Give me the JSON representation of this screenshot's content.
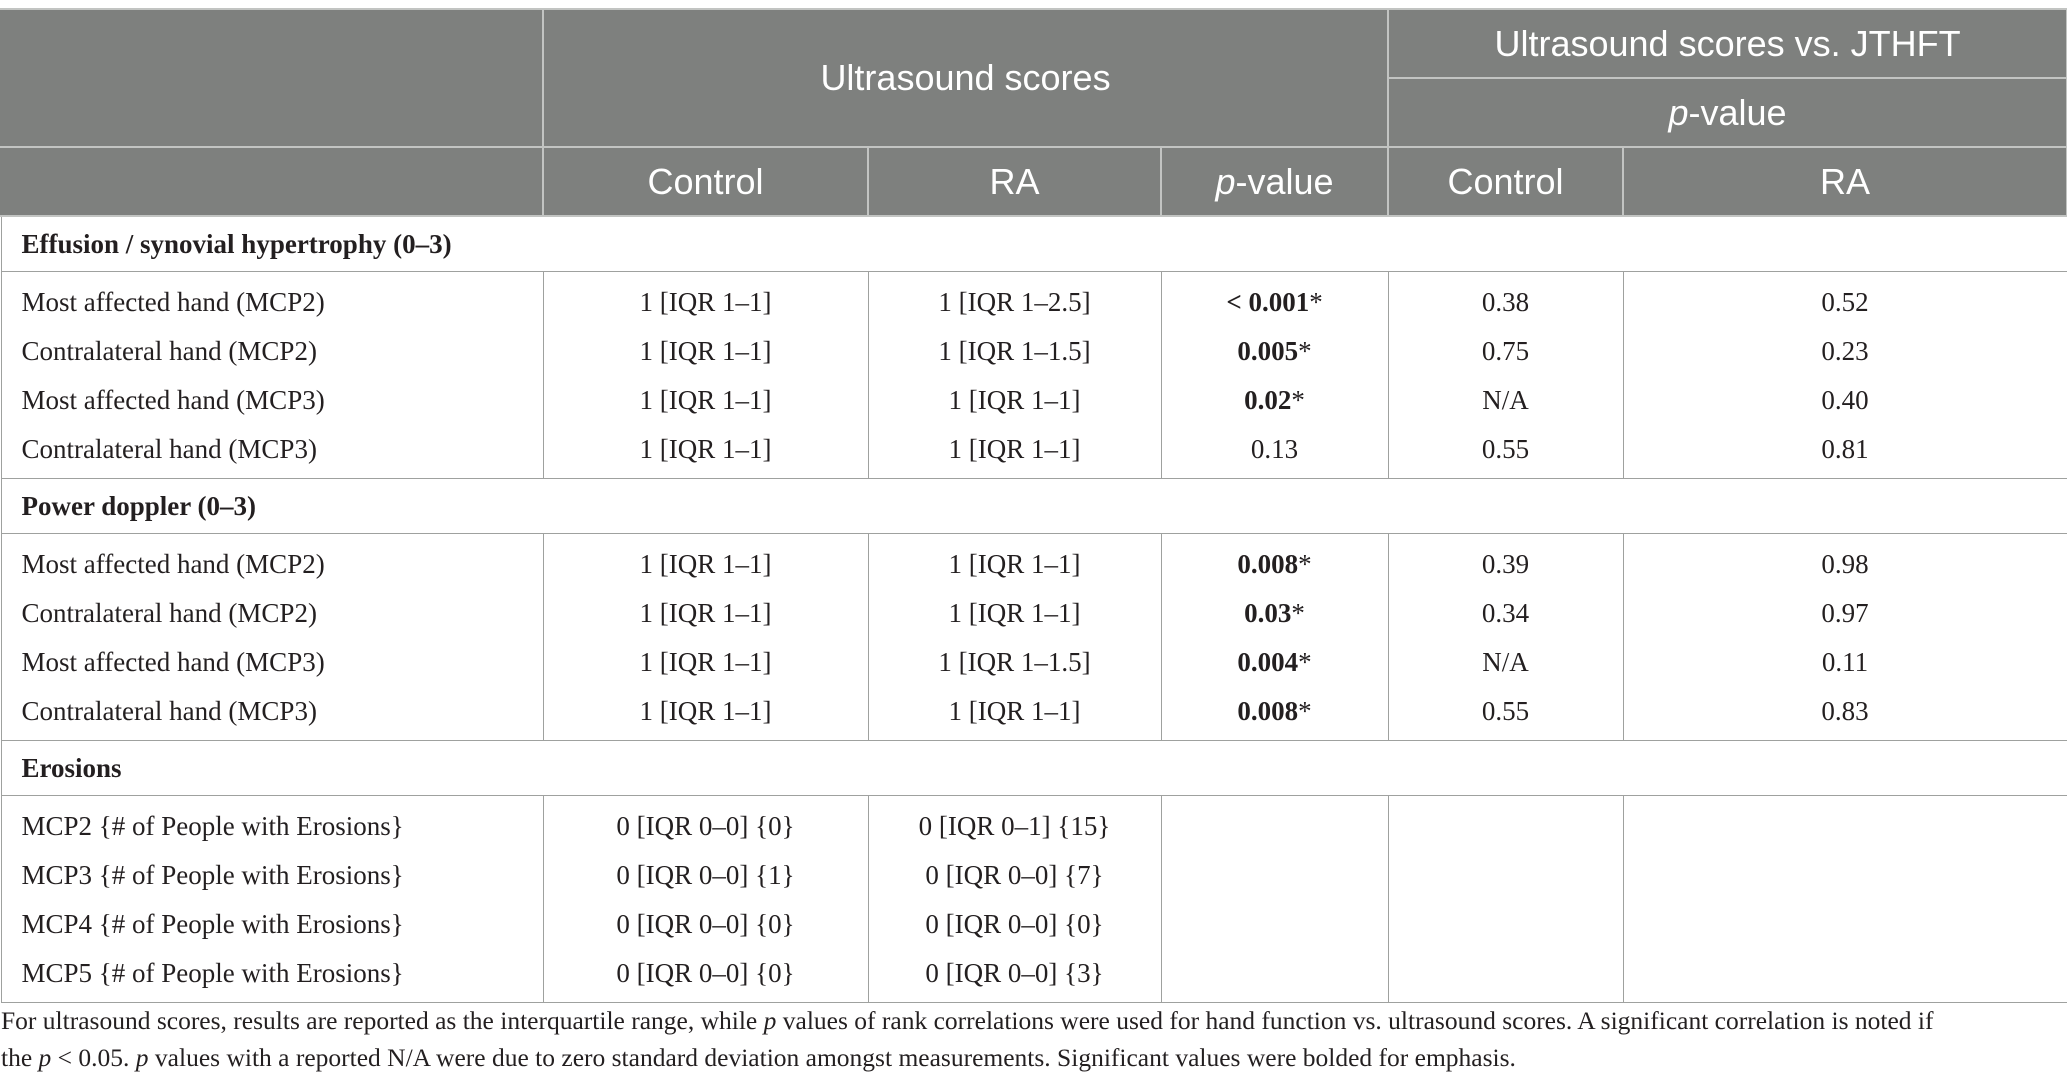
{
  "header": {
    "group_scores": "Ultrasound scores",
    "group_vs": "Ultrasound scores vs. JTHFT",
    "pvalue_p": "p",
    "pvalue_rest": "-value",
    "col_control": "Control",
    "col_ra": "RA"
  },
  "sections": [
    {
      "title": "Effusion / synovial hypertrophy (0–3)",
      "rows": [
        {
          "label": "Most affected hand (MCP2)",
          "control": "1 [IQR 1–1]",
          "ra": "1 [IQR 1–2.5]",
          "p": "< 0.001",
          "sig": "*",
          "jthft_control": "0.38",
          "jthft_ra": "0.52"
        },
        {
          "label": "Contralateral hand (MCP2)",
          "control": "1 [IQR 1–1]",
          "ra": "1 [IQR 1–1.5]",
          "p": "0.005",
          "sig": "*",
          "jthft_control": "0.75",
          "jthft_ra": "0.23"
        },
        {
          "label": "Most affected hand (MCP3)",
          "control": "1 [IQR 1–1]",
          "ra": "1 [IQR 1–1]",
          "p": "0.02",
          "sig": "*",
          "jthft_control": "N/A",
          "jthft_ra": "0.40"
        },
        {
          "label": "Contralateral hand (MCP3)",
          "control": "1 [IQR 1–1]",
          "ra": "1 [IQR 1–1]",
          "p": "",
          "p_plain": "0.13",
          "sig": "",
          "jthft_control": "0.55",
          "jthft_ra": "0.81"
        }
      ]
    },
    {
      "title": "Power doppler (0–3)",
      "rows": [
        {
          "label": "Most affected hand (MCP2)",
          "control": "1 [IQR 1–1]",
          "ra": "1 [IQR 1–1]",
          "p": "0.008",
          "sig": "*",
          "jthft_control": "0.39",
          "jthft_ra": "0.98"
        },
        {
          "label": "Contralateral hand (MCP2)",
          "control": "1 [IQR 1–1]",
          "ra": "1 [IQR 1–1]",
          "p": "0.03",
          "sig": "*",
          "jthft_control": "0.34",
          "jthft_ra": "0.97"
        },
        {
          "label": "Most affected hand (MCP3)",
          "control": "1 [IQR 1–1]",
          "ra": "1 [IQR 1–1.5]",
          "p": "0.004",
          "sig": "*",
          "jthft_control": "N/A",
          "jthft_ra": "0.11"
        },
        {
          "label": "Contralateral hand (MCP3)",
          "control": "1 [IQR 1–1]",
          "ra": "1 [IQR 1–1]",
          "p": "0.008",
          "sig": "*",
          "jthft_control": "0.55",
          "jthft_ra": "0.83"
        }
      ]
    },
    {
      "title": "Erosions",
      "rows": [
        {
          "label": "MCP2 {# of People with Erosions}",
          "control": "0 [IQR 0–0] {0}",
          "ra": "0 [IQR 0–1] {15}",
          "p": "",
          "sig": "",
          "jthft_control": "",
          "jthft_ra": ""
        },
        {
          "label": "MCP3 {# of People with Erosions}",
          "control": "0 [IQR 0–0] {1}",
          "ra": "0 [IQR 0–0] {7}",
          "p": "",
          "sig": "",
          "jthft_control": "",
          "jthft_ra": ""
        },
        {
          "label": "MCP4 {# of People with Erosions}",
          "control": "0 [IQR 0–0] {0}",
          "ra": "0 [IQR 0–0] {0}",
          "p": "",
          "sig": "",
          "jthft_control": "",
          "jthft_ra": ""
        },
        {
          "label": "MCP5 {# of People with Erosions}",
          "control": "0 [IQR 0–0] {0}",
          "ra": "0 [IQR 0–0] {3}",
          "p": "",
          "sig": "",
          "jthft_control": "",
          "jthft_ra": ""
        }
      ]
    }
  ],
  "footnote": {
    "line1_a": "For ultrasound scores, results are reported as the interquartile range, while ",
    "line1_p": "p",
    "line1_b": " values of rank correlations were used for hand function vs. ultrasound scores. A significant correlation is noted if",
    "line2_a": "the ",
    "line2_p1": "p",
    "line2_b": " < 0.05. ",
    "line2_p2": "p",
    "line2_c": " values with a reported N/A were due to zero standard deviation amongst measurements. Significant values were bolded for emphasis."
  }
}
